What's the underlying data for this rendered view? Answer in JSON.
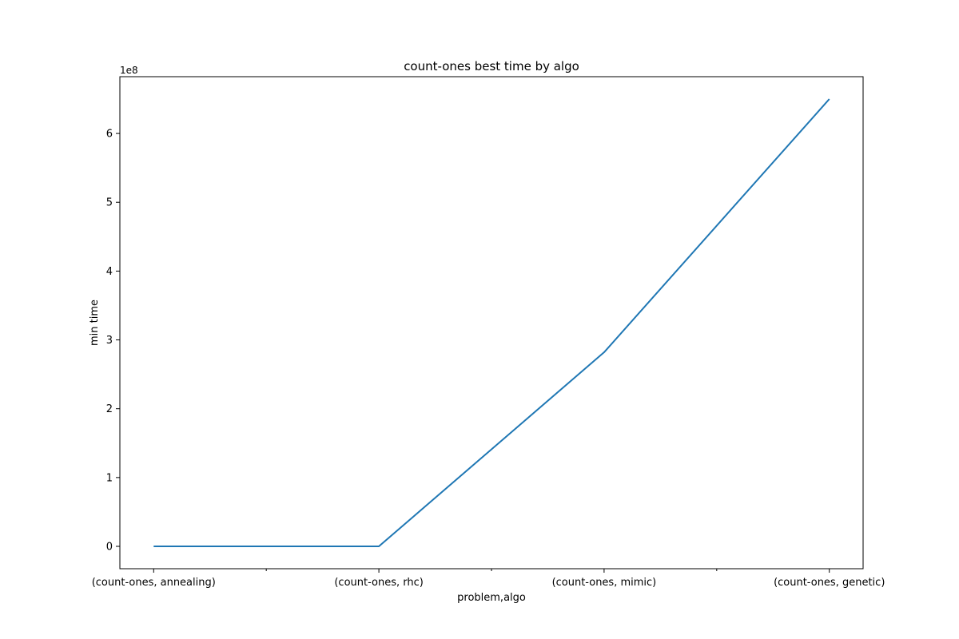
{
  "chart_data": {
    "type": "line",
    "title": "count-ones best time by algo",
    "xlabel": "problem,algo",
    "ylabel": "min time",
    "y_offset_label": "1e8",
    "categories": [
      "(count-ones, annealing)",
      "(count-ones, rhc)",
      "(count-ones, mimic)",
      "(count-ones, genetic)"
    ],
    "series": [
      {
        "values": [
          0,
          0,
          2.82,
          6.5
        ],
        "color": "#1f77b4"
      }
    ],
    "y_ticks": [
      0,
      1,
      2,
      3,
      4,
      5,
      6
    ],
    "y_tick_labels": [
      "0",
      "1",
      "2",
      "3",
      "4",
      "5",
      "6"
    ],
    "ylim": [
      -0.325,
      6.825
    ],
    "x_minor_ticks": true,
    "grid": false,
    "legend": "none"
  }
}
